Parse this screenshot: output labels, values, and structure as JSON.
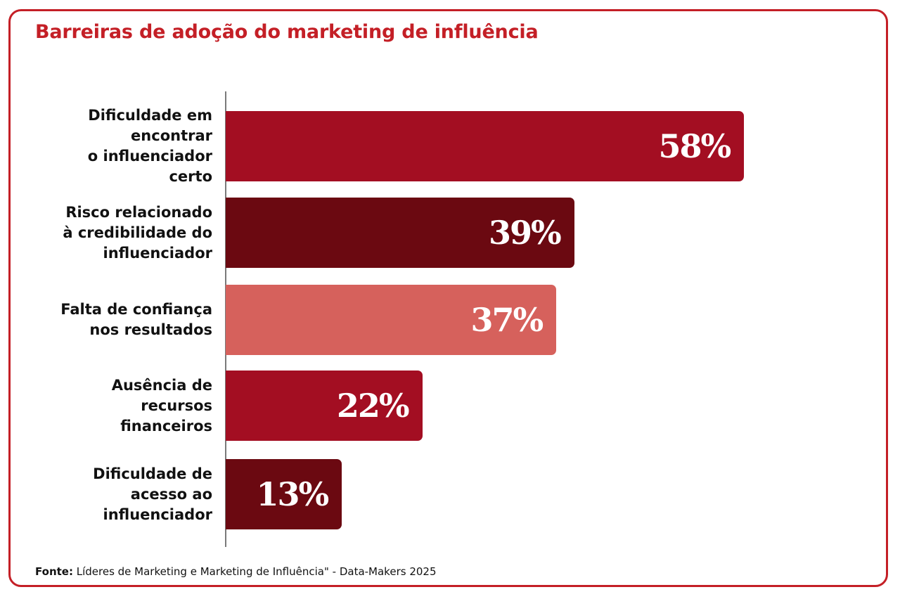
{
  "title": "Barreiras de adoção do marketing de influência",
  "source": {
    "label": "Fonte:",
    "text": " Líderes de Marketing e Marketing de Influência\" - Data-Makers 2025"
  },
  "chart_data": {
    "type": "bar",
    "orientation": "horizontal",
    "title": "Barreiras de adoção do marketing de influência",
    "categories": [
      "Dificuldade em encontrar o influenciador certo",
      "Risco relacionado à credibilidade do influenciador",
      "Falta de confiança nos resultados",
      "Ausência de recursos financeiros",
      "Dificuldade de acesso ao influenciador"
    ],
    "category_lines": [
      [
        "Dificuldade em",
        "encontrar",
        "o influenciador",
        "certo"
      ],
      [
        "Risco relacionado",
        "à credibilidade do",
        "influenciador"
      ],
      [
        "Falta de confiança",
        "nos resultados"
      ],
      [
        "Ausência de",
        "recursos",
        "financeiros"
      ],
      [
        "Dificuldade de",
        "acesso ao",
        "influenciador"
      ]
    ],
    "values": [
      58,
      39,
      37,
      22,
      13
    ],
    "value_labels": [
      "58%",
      "39%",
      "37%",
      "22%",
      "13%"
    ],
    "colors": [
      "#a30e22",
      "#6b0911",
      "#d6615c",
      "#a30e22",
      "#6b0911"
    ],
    "xlim": [
      0,
      100
    ],
    "grid": false,
    "legend": "none"
  }
}
